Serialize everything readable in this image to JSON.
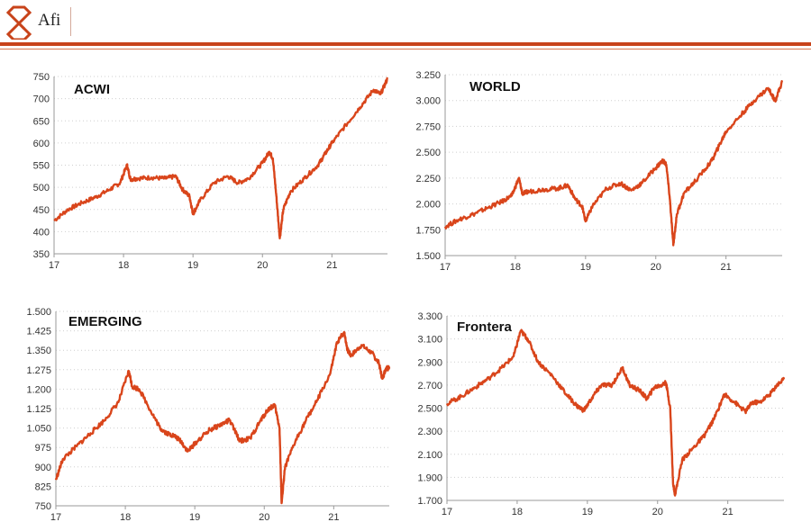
{
  "header": {
    "brand": "Afi",
    "colors": {
      "accent": "#c8431a",
      "line": "#d9451b"
    },
    "logo_icon": "afi-ribbon-logo"
  },
  "chart_data": [
    {
      "type": "line",
      "title": "ACWI",
      "ylim": [
        350,
        750
      ],
      "yticks": [
        "350",
        "400",
        "450",
        "500",
        "550",
        "600",
        "650",
        "700",
        "750"
      ],
      "xlim": [
        17,
        21.8
      ],
      "xticks": [
        "17",
        "18",
        "19",
        "20",
        "21"
      ],
      "grid": "horizontal dotted",
      "series": [
        {
          "x": [
            17.0,
            17.2,
            17.4,
            17.6,
            17.8,
            17.95,
            18.05,
            18.1,
            18.2,
            18.4,
            18.6,
            18.75,
            18.85,
            18.95,
            19.0,
            19.1,
            19.3,
            19.5,
            19.65,
            19.8,
            20.0,
            20.1,
            20.15,
            20.2,
            20.25,
            20.3,
            20.4,
            20.6,
            20.8,
            20.9,
            21.0,
            21.2,
            21.4,
            21.6,
            21.7,
            21.8
          ],
          "y": [
            425,
            450,
            465,
            478,
            495,
            510,
            550,
            518,
            520,
            522,
            520,
            525,
            495,
            480,
            440,
            470,
            510,
            525,
            510,
            520,
            555,
            580,
            565,
            480,
            385,
            450,
            490,
            520,
            550,
            575,
            600,
            640,
            680,
            720,
            710,
            745
          ]
        }
      ]
    },
    {
      "type": "line",
      "title": "WORLD",
      "ylim": [
        1500,
        3250
      ],
      "yticks": [
        "1.500",
        "1.750",
        "2.000",
        "2.250",
        "2.500",
        "2.750",
        "3.000",
        "3.250"
      ],
      "xlim": [
        17,
        21.8
      ],
      "xticks": [
        "17",
        "18",
        "19",
        "20",
        "21"
      ],
      "grid": "horizontal dotted",
      "series": [
        {
          "x": [
            17.0,
            17.2,
            17.4,
            17.6,
            17.8,
            17.95,
            18.05,
            18.1,
            18.2,
            18.4,
            18.6,
            18.75,
            18.85,
            18.95,
            19.0,
            19.1,
            19.3,
            19.5,
            19.65,
            19.8,
            20.0,
            20.1,
            20.15,
            20.2,
            20.25,
            20.3,
            20.4,
            20.6,
            20.8,
            20.9,
            21.0,
            21.2,
            21.4,
            21.6,
            21.7,
            21.8
          ],
          "y": [
            1780,
            1850,
            1900,
            1960,
            2020,
            2080,
            2250,
            2100,
            2120,
            2140,
            2150,
            2180,
            2050,
            1980,
            1830,
            1980,
            2150,
            2200,
            2130,
            2200,
            2350,
            2420,
            2380,
            2050,
            1600,
            1900,
            2100,
            2250,
            2420,
            2560,
            2700,
            2850,
            3000,
            3120,
            3000,
            3180
          ]
        }
      ]
    },
    {
      "type": "line",
      "title": "EMERGING",
      "ylim": [
        750,
        1500
      ],
      "yticks": [
        "750",
        "825",
        "900",
        "975",
        "1.050",
        "1.125",
        "1.200",
        "1.275",
        "1.350",
        "1.425",
        "1.500"
      ],
      "xlim": [
        17,
        21.8
      ],
      "xticks": [
        "17",
        "18",
        "19",
        "20",
        "21"
      ],
      "grid": "horizontal dotted",
      "series": [
        {
          "x": [
            17.0,
            17.1,
            17.3,
            17.5,
            17.7,
            17.9,
            18.05,
            18.1,
            18.2,
            18.4,
            18.5,
            18.6,
            18.7,
            18.8,
            18.9,
            19.0,
            19.2,
            19.35,
            19.5,
            19.65,
            19.8,
            19.95,
            20.05,
            20.15,
            20.22,
            20.25,
            20.3,
            20.45,
            20.6,
            20.75,
            20.95,
            21.05,
            21.15,
            21.2,
            21.25,
            21.4,
            21.55,
            21.65,
            21.7,
            21.75,
            21.8
          ],
          "y": [
            850,
            930,
            980,
            1030,
            1080,
            1150,
            1270,
            1210,
            1200,
            1100,
            1050,
            1030,
            1020,
            1000,
            960,
            990,
            1040,
            1060,
            1080,
            1000,
            1010,
            1080,
            1120,
            1140,
            1050,
            760,
            900,
            1000,
            1080,
            1150,
            1260,
            1380,
            1420,
            1350,
            1330,
            1370,
            1340,
            1300,
            1240,
            1280,
            1280
          ]
        }
      ]
    },
    {
      "type": "line",
      "title": "Frontera",
      "ylim": [
        1700,
        3300
      ],
      "yticks": [
        "1.700",
        "1.900",
        "2.100",
        "2.300",
        "2.500",
        "2.700",
        "2.900",
        "3.100",
        "3.300"
      ],
      "xlim": [
        17,
        21.8
      ],
      "xticks": [
        "17",
        "18",
        "19",
        "20",
        "21"
      ],
      "grid": "horizontal dotted",
      "series": [
        {
          "x": [
            17.0,
            17.2,
            17.4,
            17.6,
            17.8,
            17.95,
            18.05,
            18.15,
            18.3,
            18.5,
            18.7,
            18.85,
            18.95,
            19.1,
            19.2,
            19.35,
            19.5,
            19.6,
            19.75,
            19.85,
            19.95,
            20.05,
            20.12,
            20.18,
            20.22,
            20.25,
            20.35,
            20.5,
            20.65,
            20.8,
            20.95,
            21.1,
            21.25,
            21.35,
            21.45,
            21.6,
            21.7,
            21.8
          ],
          "y": [
            2540,
            2600,
            2680,
            2760,
            2860,
            2950,
            3170,
            3100,
            2900,
            2780,
            2620,
            2520,
            2480,
            2620,
            2700,
            2700,
            2850,
            2700,
            2650,
            2580,
            2680,
            2700,
            2720,
            2500,
            1850,
            1750,
            2050,
            2150,
            2250,
            2400,
            2620,
            2550,
            2470,
            2550,
            2550,
            2620,
            2700,
            2750
          ]
        }
      ]
    }
  ]
}
